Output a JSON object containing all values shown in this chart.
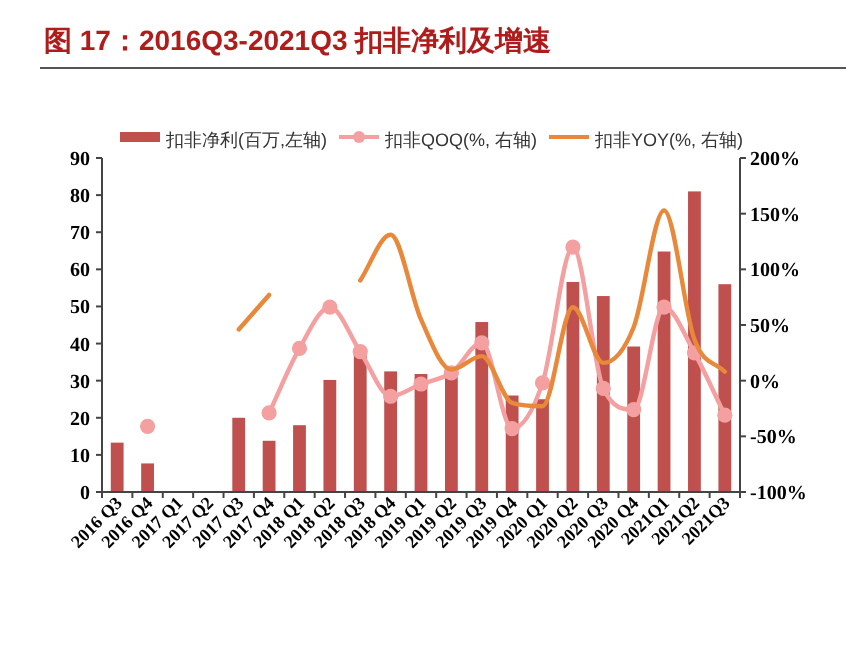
{
  "chart_data": {
    "type": "bar",
    "title": "图 17：2016Q3-2021Q3 扣非净利及增速",
    "categories": [
      "2016 Q3",
      "2016 Q4",
      "2017 Q1",
      "2017 Q2",
      "2017 Q3",
      "2017 Q4",
      "2018 Q1",
      "2018 Q2",
      "2018 Q3",
      "2018 Q4",
      "2019 Q1",
      "2019 Q2",
      "2019 Q3",
      "2019 Q4",
      "2020 Q1",
      "2020 Q2",
      "2020 Q3",
      "2020 Q4",
      "2021Q1",
      "2021Q2",
      "2021Q3"
    ],
    "series": [
      {
        "name": "扣非净利(百万,左轴)",
        "color": "#c0504d",
        "values": [
          13.3,
          7.7,
          null,
          null,
          20,
          13.8,
          18,
          30.2,
          37,
          32.5,
          31.8,
          31,
          45.8,
          26,
          25,
          56.6,
          52.8,
          39.2,
          64.8,
          81,
          56
        ]
      },
      {
        "name": "扣非QOQ(%, 右轴)",
        "type": "line",
        "axis": "y2",
        "marker": "circle",
        "color": "#f4a0a0",
        "values": [
          null,
          -41,
          null,
          null,
          null,
          -29,
          29,
          66,
          26,
          -14,
          -3,
          7,
          34,
          -43,
          -2,
          120,
          -7,
          -26,
          66,
          25,
          -31
        ]
      },
      {
        "name": "扣非YOY(%, 右轴)",
        "type": "line",
        "axis": "y2",
        "marker": "none",
        "color": "#e8883a",
        "values": [
          null,
          null,
          null,
          null,
          46,
          77,
          null,
          null,
          90,
          131,
          55,
          10,
          22,
          -20,
          -23,
          66,
          16,
          48,
          153,
          37,
          8
        ]
      }
    ],
    "ylim": [
      0,
      90
    ],
    "yticks": [
      0,
      10,
      20,
      30,
      40,
      50,
      60,
      70,
      80,
      90
    ],
    "y2lim": [
      -100,
      200
    ],
    "y2ticks": [
      {
        "value": -100,
        "label": "-100%"
      },
      {
        "value": -50,
        "label": "-50%"
      },
      {
        "value": 0,
        "label": "0%"
      },
      {
        "value": 50,
        "label": "50%"
      },
      {
        "value": 100,
        "label": "100%"
      },
      {
        "value": 150,
        "label": "150%"
      },
      {
        "value": 200,
        "label": "200%"
      }
    ],
    "legend": "top"
  }
}
